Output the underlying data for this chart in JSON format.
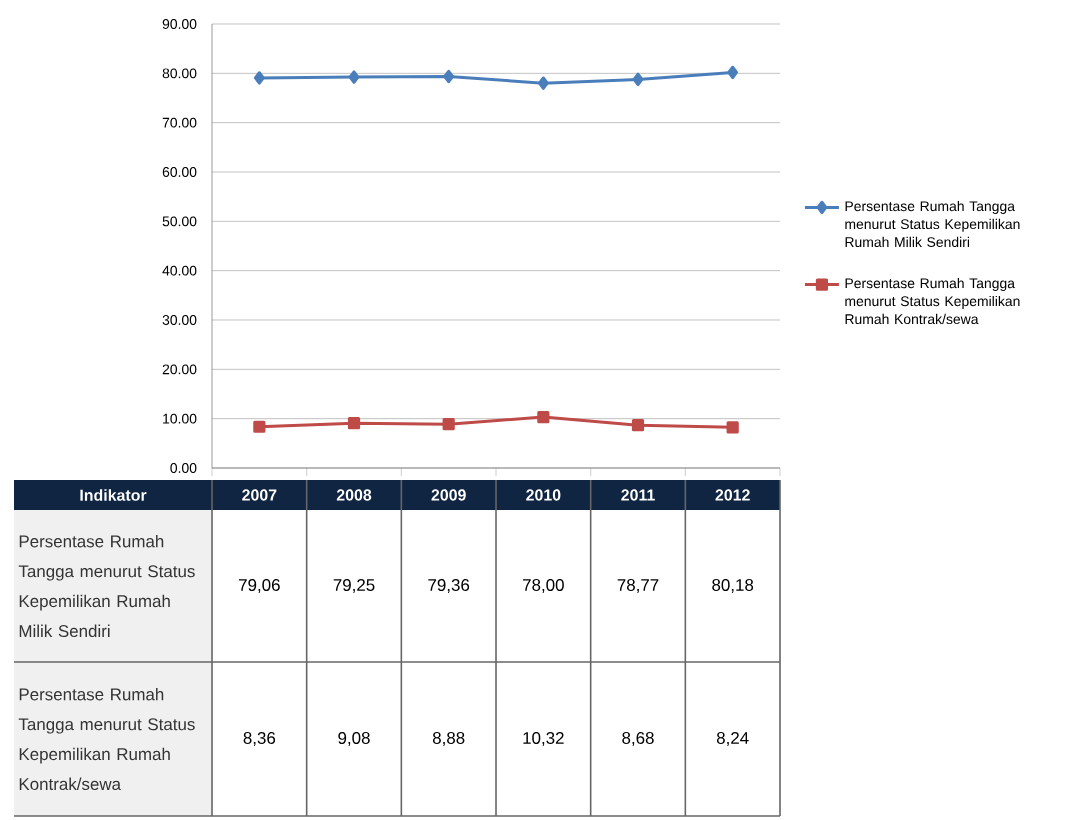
{
  "chart_data": {
    "type": "line",
    "categories": [
      "2007",
      "2008",
      "2009",
      "2010",
      "2011",
      "2012"
    ],
    "series": [
      {
        "name": "Persentase Rumah Tangga menurut Status Kepemilikan Rumah Milik Sendiri",
        "color": "#4a7ebb",
        "marker": "diamond",
        "values": [
          79.06,
          79.25,
          79.36,
          78.0,
          78.77,
          80.18
        ],
        "value_labels": [
          "79,06",
          "79,25",
          "79,36",
          "78,00",
          "78,77",
          "80,18"
        ]
      },
      {
        "name": "Persentase Rumah Tangga menurut Status Kepemilikan Rumah Kontrak/sewa",
        "color": "#be4b48",
        "marker": "square",
        "values": [
          8.36,
          9.08,
          8.88,
          10.32,
          8.68,
          8.24
        ],
        "value_labels": [
          "8,36",
          "9,08",
          "8,88",
          "10,32",
          "8,68",
          "8,24"
        ]
      }
    ],
    "ylim": [
      0,
      90
    ],
    "yticks": [
      {
        "value": 0,
        "label": "0.00"
      },
      {
        "value": 10,
        "label": "10.00"
      },
      {
        "value": 20,
        "label": "20.00"
      },
      {
        "value": 30,
        "label": "30.00"
      },
      {
        "value": 40,
        "label": "40.00"
      },
      {
        "value": 50,
        "label": "50.00"
      },
      {
        "value": 60,
        "label": "60.00"
      },
      {
        "value": 70,
        "label": "70.00"
      },
      {
        "value": 80,
        "label": "80.00"
      },
      {
        "value": 90,
        "label": "90.00"
      }
    ],
    "grid": "y",
    "legend": "right",
    "line_style": "solid",
    "annotations": [
      "Indikator"
    ]
  }
}
